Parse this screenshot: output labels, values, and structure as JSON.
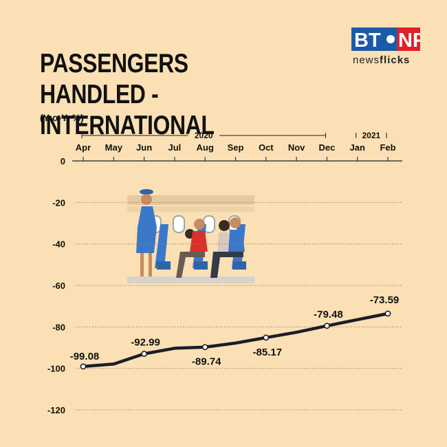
{
  "title": "PASSENGERS HANDLED - INTERNATIONAL",
  "subtitle": "(Y-o-Y, %)",
  "logo": {
    "text": "BT NF",
    "tagline_a": "news",
    "tagline_b": "flicks",
    "colors": {
      "blue": "#1a5aa8",
      "red": "#e21f26"
    }
  },
  "colors": {
    "background": "#fae0b4",
    "line": "#1c1c28"
  },
  "chart_data": {
    "type": "line",
    "title": "PASSENGERS HANDLED - INTERNATIONAL",
    "subtitle": "(Y-o-Y, %)",
    "year_groups": [
      {
        "label": "2020",
        "from": "Apr",
        "to": "Dec"
      },
      {
        "label": "2021",
        "from": "Jan",
        "to": "Feb"
      }
    ],
    "categories": [
      "Apr",
      "May",
      "Jun",
      "Jul",
      "Aug",
      "Sep",
      "Oct",
      "Nov",
      "Dec",
      "Jan",
      "Feb"
    ],
    "series": [
      {
        "values": [
          -99.08,
          -97.9,
          -92.99,
          -90.3,
          -89.74,
          -87.8,
          -85.17,
          -82.6,
          -79.48,
          -76.5,
          -73.59
        ]
      }
    ],
    "labels": [
      {
        "index": 0,
        "text": "-99.08"
      },
      {
        "index": 2,
        "text": "-92.99"
      },
      {
        "index": 4,
        "text": "-89.74"
      },
      {
        "index": 6,
        "text": "-85.17"
      },
      {
        "index": 8,
        "text": "-79.48"
      },
      {
        "index": 10,
        "text": "-73.59"
      }
    ],
    "y_ticks": [
      0,
      -20,
      -40,
      -60,
      -80,
      -100,
      -120
    ],
    "y_tick_labels": [
      "0",
      "-20",
      "-40",
      "-60",
      "-80",
      "-100",
      "-120"
    ],
    "ylim": [
      -120,
      0
    ],
    "x_axis_position": "top",
    "grid": "dotted horizontal",
    "legend": "none"
  }
}
